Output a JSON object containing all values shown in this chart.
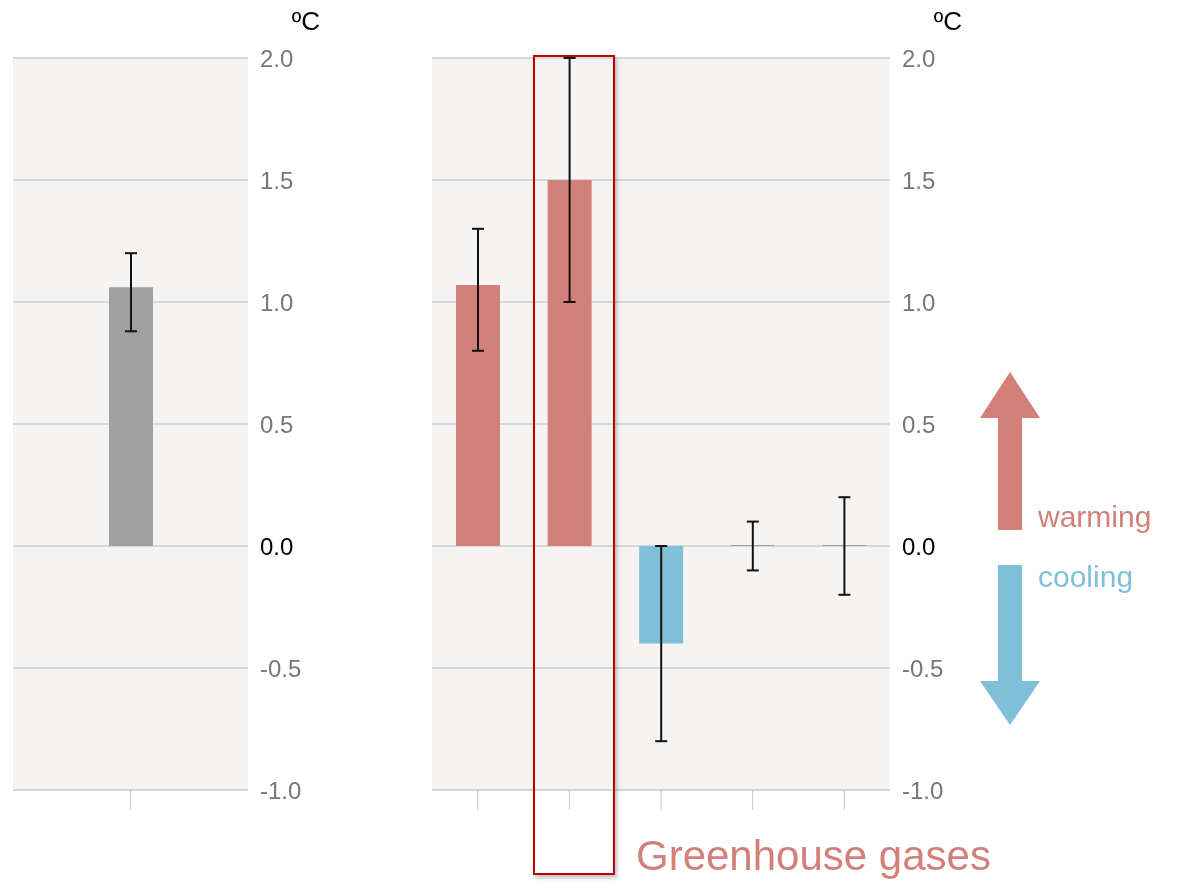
{
  "chart_data": [
    {
      "type": "bar",
      "categories": [
        null
      ],
      "values": [
        1.06
      ],
      "colors": [
        "#a0a0a0"
      ],
      "errors": [
        [
          0.88,
          1.2
        ]
      ],
      "ylim": [
        -1,
        2
      ],
      "yticks": [
        {
          "value": -1,
          "label": "-1.0"
        },
        {
          "value": -0.5,
          "label": "-0.5"
        },
        {
          "value": 0,
          "label": "0.0"
        },
        {
          "value": 0.5,
          "label": "0.5"
        },
        {
          "value": 1,
          "label": "1.0"
        },
        {
          "value": 1.5,
          "label": "1.5"
        },
        {
          "value": 2,
          "label": "2.0"
        }
      ],
      "ylabel": "ºC",
      "grid": "y"
    },
    {
      "type": "bar",
      "categories": [
        null,
        null,
        null,
        null,
        null
      ],
      "values": [
        1.07,
        1.5,
        -0.4,
        0,
        0
      ],
      "colors": [
        "#d4807a",
        "#d4807a",
        "#80bfd8",
        "#a0a0a0",
        "#a0a0a0"
      ],
      "errors": [
        [
          0.8,
          1.3
        ],
        [
          1.0,
          2.0
        ],
        [
          -0.8,
          0.0
        ],
        0.1,
        0.2
      ],
      "ylim": [
        -1,
        2
      ],
      "yticks": [
        {
          "value": -1,
          "label": "-1.0"
        },
        {
          "value": -0.5,
          "label": "-0.5"
        },
        {
          "value": 0,
          "label": "0.0"
        },
        {
          "value": 0.5,
          "label": "0.5"
        },
        {
          "value": 1,
          "label": "1.0"
        },
        {
          "value": 1.5,
          "label": "1.5"
        },
        {
          "value": 2,
          "label": "2.0"
        }
      ],
      "ylabel": "ºC",
      "grid": "y",
      "annotations": [
        "Greenhouse gases",
        "warming",
        "cooling"
      ]
    }
  ]
}
